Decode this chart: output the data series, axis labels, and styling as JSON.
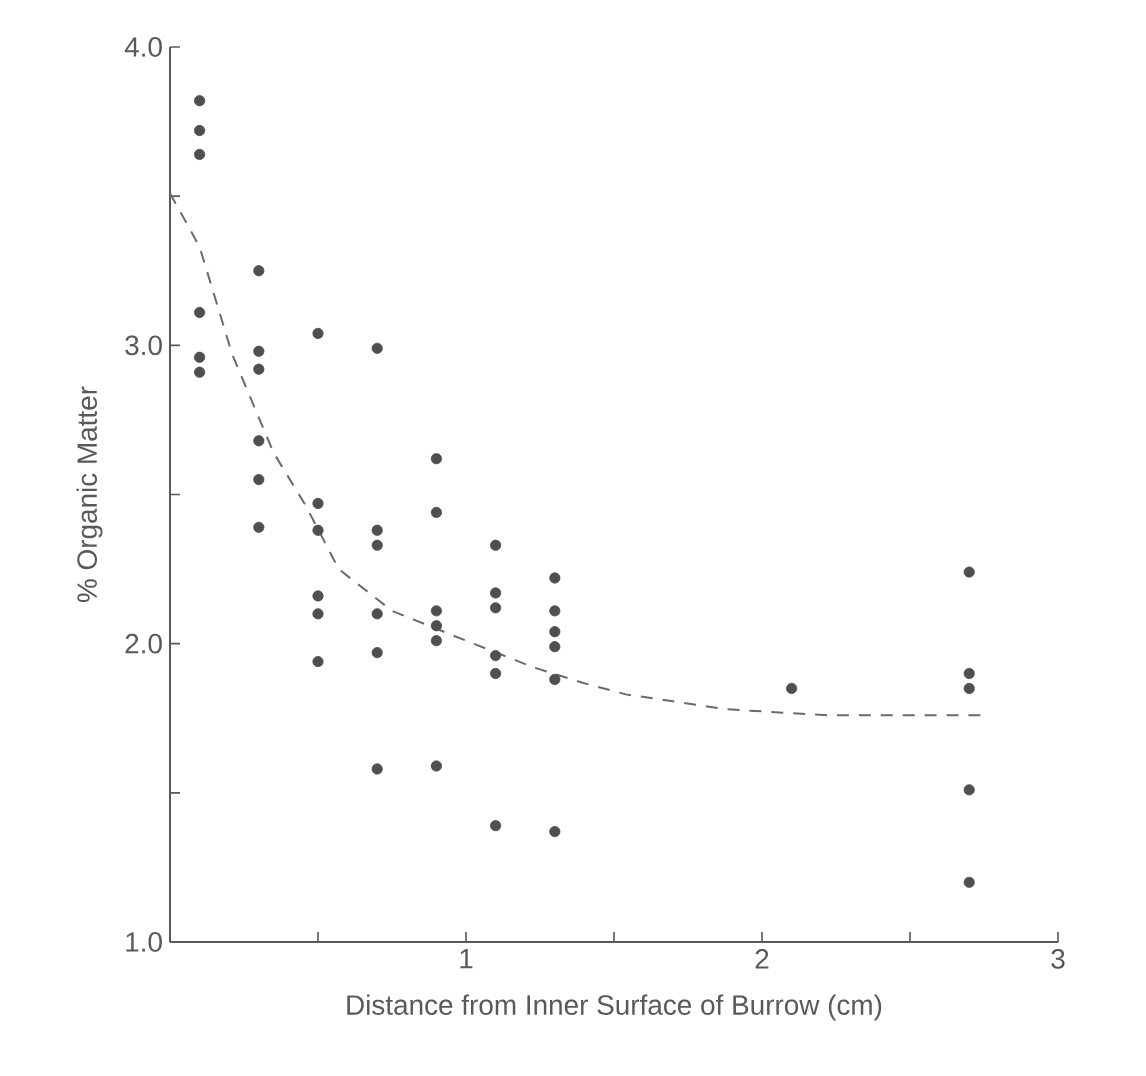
{
  "chart_data": {
    "type": "scatter",
    "xlabel": "Distance  from Inner Surface of Burrow (cm)",
    "ylabel": "%  Organic  Matter",
    "xlim": [
      0,
      3
    ],
    "ylim": [
      1,
      4
    ],
    "xticks": [
      {
        "value": 0.5,
        "label": null
      },
      1,
      {
        "value": 1.5,
        "label": null
      },
      2,
      {
        "value": 2.5,
        "label": null
      },
      3
    ],
    "yticks": [
      {
        "value": 1,
        "label": "1.0"
      },
      {
        "value": 1.5,
        "label": null
      },
      {
        "value": 2,
        "label": "2.0"
      },
      {
        "value": 2.5,
        "label": null
      },
      {
        "value": 3,
        "label": "3.0"
      },
      {
        "value": 3.5,
        "label": null
      },
      {
        "value": 4,
        "label": "4.0"
      }
    ],
    "marker": "circle",
    "series": [
      {
        "color": "#4f4f4f",
        "x": [
          0.1,
          0.1,
          0.1,
          0.1,
          0.1,
          0.1,
          0.3,
          0.3,
          0.3,
          0.3,
          0.3,
          0.3,
          0.5,
          0.5,
          0.5,
          0.5,
          0.5,
          0.5,
          0.7,
          0.7,
          0.7,
          0.7,
          0.7,
          0.7,
          0.9,
          0.9,
          0.9,
          0.9,
          0.9,
          0.9,
          1.1,
          1.1,
          1.1,
          1.1,
          1.1,
          1.1,
          1.3,
          1.3,
          1.3,
          1.3,
          1.3,
          1.3,
          2.1,
          2.7,
          2.7,
          2.7,
          2.7,
          2.7
        ],
        "values": [
          3.82,
          3.72,
          3.64,
          3.11,
          2.96,
          2.91,
          3.25,
          2.98,
          2.92,
          2.68,
          2.55,
          2.39,
          3.04,
          2.47,
          2.38,
          2.16,
          2.1,
          1.94,
          2.99,
          2.38,
          2.33,
          2.1,
          1.97,
          1.58,
          2.62,
          2.44,
          2.11,
          2.06,
          2.01,
          1.59,
          2.33,
          2.17,
          2.12,
          1.96,
          1.9,
          1.39,
          2.22,
          2.11,
          2.04,
          1.99,
          1.88,
          1.37,
          1.85,
          2.24,
          1.9,
          1.85,
          1.51,
          1.2
        ]
      },
      {
        "type": "line",
        "color": "#6a6a6a",
        "line_style": "dashed",
        "marker": "none",
        "x": [
          0,
          0.1,
          0.21,
          0.35,
          0.46,
          0.57,
          0.75,
          1.0,
          1.23,
          1.39,
          1.54,
          1.88,
          2.22,
          2.76
        ],
        "values": [
          3.51,
          3.33,
          2.97,
          2.64,
          2.46,
          2.25,
          2.11,
          2.01,
          1.92,
          1.87,
          1.83,
          1.78,
          1.76,
          1.76
        ]
      }
    ]
  }
}
